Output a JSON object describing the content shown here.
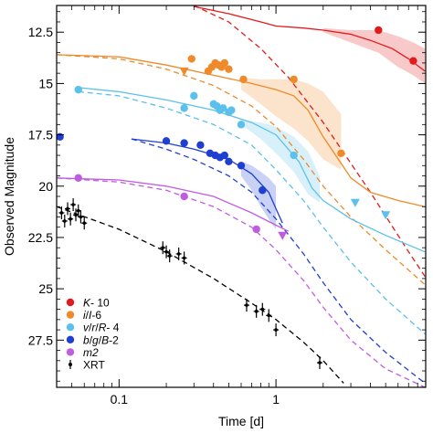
{
  "chart_data": {
    "type": "scatter",
    "xlabel": "Time [d]",
    "ylabel": "Observed Magnitude",
    "xscale": "log",
    "xlim": [
      0.04,
      9.0
    ],
    "ylim": [
      29.8,
      11.2
    ],
    "y_inverted": true,
    "xticks": [
      {
        "value": 0.1,
        "label": "0.1"
      },
      {
        "value": 1,
        "label": "1"
      }
    ],
    "yticks": [
      {
        "value": 12.5,
        "label": "12.5"
      },
      {
        "value": 15,
        "label": "15"
      },
      {
        "value": 17.5,
        "label": "17.5"
      },
      {
        "value": 20,
        "label": "20"
      },
      {
        "value": 22.5,
        "label": "22.5"
      },
      {
        "value": 25,
        "label": "25"
      },
      {
        "value": 27.5,
        "label": "27.5"
      }
    ],
    "grid": false,
    "legend_position": "bottom-left",
    "series": [
      {
        "name": "K- 10",
        "label_parts": [
          {
            "text": "K",
            "italic": true
          },
          {
            "text": "- 10",
            "italic": false
          }
        ],
        "color": "#e31a1c",
        "marker": "circle",
        "points": [
          [
            4.5,
            12.4
          ],
          [
            7.5,
            13.9
          ]
        ],
        "upper_limits": [],
        "model_dashed": [
          [
            0.3,
            11.2
          ],
          [
            0.5,
            12.0
          ],
          [
            0.8,
            13.3
          ],
          [
            1.2,
            14.7
          ],
          [
            2.0,
            16.9
          ],
          [
            4.0,
            20.3
          ],
          [
            7.0,
            23.2
          ],
          [
            8.9,
            24.4
          ]
        ],
        "model_solid": [
          [
            0.3,
            11.25
          ],
          [
            0.5,
            11.6
          ],
          [
            0.8,
            12.0
          ],
          [
            1.0,
            12.2
          ],
          [
            1.5,
            12.3
          ],
          [
            2.0,
            12.4
          ],
          [
            3.0,
            12.6
          ],
          [
            4.0,
            12.9
          ],
          [
            5.5,
            13.3
          ],
          [
            7.0,
            13.8
          ],
          [
            8.9,
            14.4
          ]
        ],
        "band": [
          [
            2.0,
            12.3,
            12.5
          ],
          [
            3.0,
            12.4,
            13.0
          ],
          [
            4.5,
            12.4,
            13.5
          ],
          [
            6.0,
            12.7,
            14.2
          ],
          [
            7.5,
            13.0,
            14.6
          ],
          [
            8.9,
            13.3,
            15.0
          ]
        ]
      },
      {
        "name": "i/I-6",
        "label_parts": [
          {
            "text": "i",
            "italic": true
          },
          {
            "text": "/",
            "italic": false
          },
          {
            "text": "I",
            "italic": true
          },
          {
            "text": "-6",
            "italic": false
          }
        ],
        "color": "#ee8a2a",
        "marker": "circle",
        "points": [
          [
            0.29,
            13.8
          ],
          [
            0.37,
            14.4
          ],
          [
            0.39,
            14.2
          ],
          [
            0.41,
            14.0
          ],
          [
            0.43,
            14.1
          ],
          [
            0.45,
            14.2
          ],
          [
            0.47,
            14.0
          ],
          [
            0.5,
            14.3
          ],
          [
            0.62,
            14.8
          ],
          [
            1.3,
            14.8
          ],
          [
            2.6,
            18.4
          ]
        ],
        "upper_limits": [
          [
            0.26,
            14.4
          ]
        ],
        "model_dashed": [
          [
            0.04,
            13.6
          ],
          [
            0.1,
            13.8
          ],
          [
            0.2,
            14.3
          ],
          [
            0.4,
            15.1
          ],
          [
            0.7,
            16.1
          ],
          [
            1.0,
            17.1
          ],
          [
            1.5,
            18.7
          ],
          [
            2.0,
            20.0
          ],
          [
            3.0,
            21.5
          ],
          [
            5.0,
            23.1
          ],
          [
            8.9,
            24.8
          ]
        ],
        "model_solid": [
          [
            0.04,
            13.6
          ],
          [
            0.1,
            13.7
          ],
          [
            0.2,
            14.1
          ],
          [
            0.4,
            14.6
          ],
          [
            0.7,
            15.0
          ],
          [
            1.0,
            15.3
          ],
          [
            1.3,
            15.6
          ],
          [
            1.6,
            16.3
          ],
          [
            2.0,
            17.6
          ],
          [
            2.5,
            18.7
          ],
          [
            3.0,
            19.6
          ],
          [
            4.0,
            20.3
          ],
          [
            6.0,
            20.7
          ],
          [
            8.9,
            21.0
          ]
        ],
        "band": [
          [
            0.6,
            14.7,
            15.3
          ],
          [
            0.8,
            14.8,
            16.0
          ],
          [
            1.0,
            14.8,
            16.6
          ],
          [
            1.3,
            14.8,
            17.2
          ],
          [
            1.6,
            15.0,
            17.8
          ],
          [
            2.0,
            15.4,
            18.7
          ],
          [
            2.6,
            16.5,
            19.2
          ]
        ]
      },
      {
        "name": "v/r/R- 4",
        "label_parts": [
          {
            "text": "v",
            "italic": true
          },
          {
            "text": "/",
            "italic": false
          },
          {
            "text": "r",
            "italic": true
          },
          {
            "text": "/",
            "italic": false
          },
          {
            "text": "R",
            "italic": true
          },
          {
            "text": "- 4",
            "italic": false
          }
        ],
        "color": "#5bc0eb",
        "marker": "circle",
        "points": [
          [
            0.055,
            15.3
          ],
          [
            0.26,
            16.2
          ],
          [
            0.3,
            15.6
          ],
          [
            0.4,
            16.0
          ],
          [
            0.42,
            16.1
          ],
          [
            0.44,
            16.3
          ],
          [
            0.46,
            16.2
          ],
          [
            0.5,
            16.4
          ],
          [
            0.52,
            16.3
          ],
          [
            0.6,
            17.0
          ],
          [
            1.3,
            18.5
          ]
        ],
        "upper_limits": [
          [
            3.2,
            20.8
          ],
          [
            5.0,
            21.4
          ]
        ],
        "model_dashed": [
          [
            0.055,
            15.4
          ],
          [
            0.1,
            15.6
          ],
          [
            0.2,
            16.2
          ],
          [
            0.4,
            17.0
          ],
          [
            0.7,
            18.0
          ],
          [
            1.0,
            19.2
          ],
          [
            1.5,
            20.7
          ],
          [
            2.0,
            22.0
          ],
          [
            3.0,
            23.7
          ],
          [
            5.0,
            25.5
          ],
          [
            8.9,
            27.2
          ]
        ],
        "model_solid": [
          [
            0.055,
            15.2
          ],
          [
            0.1,
            15.4
          ],
          [
            0.2,
            15.8
          ],
          [
            0.4,
            16.3
          ],
          [
            0.7,
            16.9
          ],
          [
            1.0,
            17.5
          ],
          [
            1.4,
            18.8
          ],
          [
            1.7,
            20.1
          ],
          [
            2.0,
            20.7
          ],
          [
            3.0,
            21.6
          ],
          [
            5.0,
            22.4
          ],
          [
            8.9,
            23.2
          ]
        ],
        "band": [
          [
            0.6,
            16.8,
            17.0
          ],
          [
            0.8,
            16.9,
            17.7
          ],
          [
            1.0,
            17.1,
            18.4
          ],
          [
            1.3,
            17.6,
            19.3
          ],
          [
            1.6,
            18.3,
            20.4
          ],
          [
            1.9,
            19.5,
            20.8
          ]
        ]
      },
      {
        "name": "b/g/B-2",
        "label_parts": [
          {
            "text": "b",
            "italic": true
          },
          {
            "text": "/",
            "italic": false
          },
          {
            "text": "g",
            "italic": true
          },
          {
            "text": "/",
            "italic": false
          },
          {
            "text": "B",
            "italic": true
          },
          {
            "text": "-2",
            "italic": false
          }
        ],
        "color": "#1f3fd0",
        "marker": "circle",
        "points": [
          [
            0.042,
            17.6
          ],
          [
            0.2,
            17.8
          ],
          [
            0.26,
            17.9
          ],
          [
            0.33,
            18.0
          ],
          [
            0.38,
            18.4
          ],
          [
            0.41,
            18.5
          ],
          [
            0.44,
            18.6
          ],
          [
            0.47,
            18.5
          ],
          [
            0.5,
            18.8
          ],
          [
            0.6,
            19.0
          ],
          [
            0.82,
            20.2
          ]
        ],
        "upper_limits": [],
        "model_dashed": [
          [
            0.12,
            17.7
          ],
          [
            0.2,
            18.2
          ],
          [
            0.3,
            18.7
          ],
          [
            0.5,
            19.5
          ],
          [
            0.7,
            20.3
          ],
          [
            1.0,
            21.6
          ],
          [
            1.5,
            23.3
          ],
          [
            2.0,
            24.7
          ],
          [
            3.0,
            26.5
          ],
          [
            5.0,
            28.1
          ],
          [
            8.9,
            29.6
          ]
        ],
        "model_solid": [
          [
            0.12,
            17.7
          ],
          [
            0.2,
            17.9
          ],
          [
            0.3,
            18.2
          ],
          [
            0.5,
            18.7
          ],
          [
            0.7,
            19.4
          ],
          [
            0.9,
            20.3
          ],
          [
            1.0,
            21.1
          ],
          [
            1.1,
            21.8
          ]
        ],
        "band": [
          [
            0.6,
            18.8,
            19.5
          ],
          [
            0.7,
            19.0,
            20.2
          ],
          [
            0.8,
            19.3,
            21.0
          ],
          [
            0.9,
            19.6,
            21.6
          ],
          [
            1.0,
            20.0,
            22.1
          ]
        ]
      },
      {
        "name": "m2",
        "label_parts": [
          {
            "text": "m2",
            "italic": true
          }
        ],
        "color": "#c05ce0",
        "marker": "circle",
        "points": [
          [
            0.055,
            19.6
          ],
          [
            0.26,
            20.5
          ],
          [
            0.75,
            22.1
          ]
        ],
        "upper_limits": [
          [
            1.1,
            22.4
          ]
        ],
        "model_dashed": [
          [
            0.04,
            19.6
          ],
          [
            0.1,
            19.8
          ],
          [
            0.2,
            20.2
          ],
          [
            0.4,
            21.0
          ],
          [
            0.7,
            22.0
          ],
          [
            1.0,
            23.1
          ],
          [
            1.5,
            24.6
          ],
          [
            2.0,
            25.9
          ],
          [
            3.0,
            27.5
          ],
          [
            5.0,
            28.9
          ],
          [
            8.9,
            29.8
          ]
        ],
        "model_solid": [
          [
            0.04,
            19.6
          ],
          [
            0.1,
            19.7
          ],
          [
            0.2,
            20.0
          ],
          [
            0.4,
            20.5
          ],
          [
            0.7,
            21.3
          ],
          [
            1.0,
            21.9
          ],
          [
            1.2,
            22.2
          ]
        ],
        "band": []
      },
      {
        "name": "XRT",
        "label_parts": [
          {
            "text": "XRT",
            "italic": false
          }
        ],
        "color": "#000000",
        "marker": "errorbar",
        "points": [
          [
            0.043,
            21.3
          ],
          [
            0.045,
            21.7
          ],
          [
            0.047,
            21.1
          ],
          [
            0.049,
            21.6
          ],
          [
            0.051,
            20.9
          ],
          [
            0.053,
            21.4
          ],
          [
            0.055,
            21.2
          ],
          [
            0.057,
            21.5
          ],
          [
            0.06,
            21.8
          ],
          [
            0.19,
            23.0
          ],
          [
            0.2,
            23.2
          ],
          [
            0.21,
            23.4
          ],
          [
            0.24,
            23.3
          ],
          [
            0.26,
            23.5
          ],
          [
            0.65,
            25.8
          ],
          [
            0.75,
            26.1
          ],
          [
            0.82,
            26.0
          ],
          [
            0.9,
            26.3
          ],
          [
            1.0,
            27.0
          ],
          [
            1.9,
            28.6
          ]
        ],
        "upper_limits": [],
        "model_dashed": [
          [
            0.04,
            21.0
          ],
          [
            0.1,
            22.1
          ],
          [
            0.2,
            23.2
          ],
          [
            0.4,
            24.5
          ],
          [
            0.7,
            25.7
          ],
          [
            1.0,
            26.5
          ],
          [
            1.5,
            27.6
          ],
          [
            2.0,
            28.5
          ],
          [
            2.7,
            29.6
          ]
        ],
        "model_solid": [],
        "band": []
      }
    ]
  }
}
